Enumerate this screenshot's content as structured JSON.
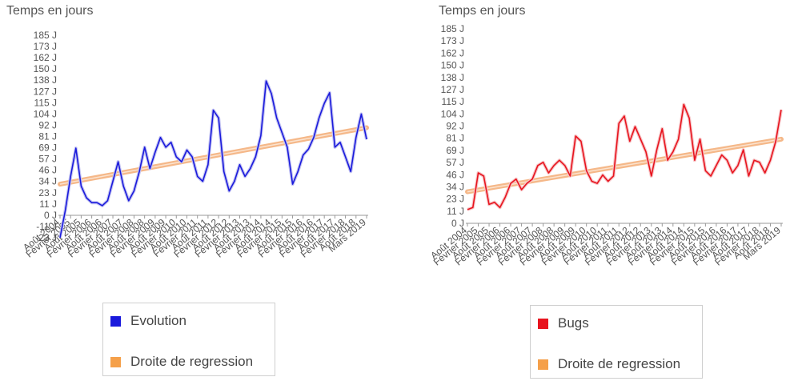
{
  "chart_data": [
    {
      "type": "line",
      "ylabel": "Temps en jours",
      "ytick_labels": [
        "185 J",
        "173 J",
        "162 J",
        "150 J",
        "138 J",
        "127 J",
        "115 J",
        "104 J",
        "92 J",
        "81 J",
        "69 J",
        "57 J",
        "46 J",
        "34 J",
        "23 J",
        "11 J",
        "0 J",
        "-11 J",
        "-23 J"
      ],
      "ylim": [
        -23,
        185
      ],
      "xtick_labels": [
        "Août 2004",
        "Février 2005",
        "Août 2005",
        "Février 2006",
        "Août 2006",
        "Février 2007",
        "Août 2007",
        "Février 2008",
        "Août 2008",
        "Février 2009",
        "Août 2009",
        "Février 2010",
        "Août 2010",
        "Février 2011",
        "Août 2011",
        "Février 2012",
        "Août 2012",
        "Février 2013",
        "Août 2013",
        "Février 2014",
        "Août 2014",
        "Février 2015",
        "Août 2015",
        "Février 2016",
        "Août 2016",
        "Février 2017",
        "Août 2017",
        "Février 2018",
        "Août 2018",
        "Mars 2019"
      ],
      "series": [
        {
          "name": "Evolution",
          "color": "#1a1adc",
          "x": [
            0,
            1,
            2,
            3,
            4,
            5,
            6,
            7,
            8,
            9,
            10,
            11,
            12,
            13,
            14,
            15,
            16,
            17,
            18,
            19,
            20,
            21,
            22,
            23,
            24,
            25,
            26,
            27,
            28,
            29,
            30,
            31,
            32,
            33,
            34,
            35,
            36,
            37,
            38,
            39,
            40,
            41,
            42,
            43,
            44,
            45,
            46,
            47,
            48,
            49,
            50,
            51,
            52,
            53,
            54,
            55,
            56,
            57,
            58
          ],
          "y": [
            -23,
            5,
            40,
            69,
            30,
            18,
            13,
            13,
            10,
            15,
            35,
            55,
            30,
            15,
            25,
            45,
            70,
            48,
            65,
            80,
            70,
            75,
            60,
            55,
            67,
            60,
            40,
            35,
            52,
            108,
            100,
            45,
            25,
            35,
            52,
            40,
            48,
            60,
            82,
            138,
            125,
            100,
            85,
            70,
            32,
            45,
            62,
            68,
            80,
            100,
            115,
            126,
            70,
            75,
            60,
            45,
            80,
            104,
            78
          ]
        },
        {
          "name": "Droite de regression",
          "color": "#f5b889",
          "x": [
            0,
            58
          ],
          "y": [
            32,
            90
          ]
        }
      ],
      "legend": {
        "position": "bottom",
        "entries": [
          "Evolution",
          "Droite de regression"
        ]
      },
      "grid": false
    },
    {
      "type": "line",
      "ylabel": "Temps en jours",
      "ytick_labels": [
        "185 J",
        "173 J",
        "162 J",
        "150 J",
        "138 J",
        "127 J",
        "115 J",
        "104 J",
        "92 J",
        "81 J",
        "69 J",
        "57 J",
        "46 J",
        "34 J",
        "23 J",
        "11 J",
        "0 J"
      ],
      "ylim": [
        0,
        185
      ],
      "xtick_labels": [
        "Août 2004",
        "Février 2005",
        "Août 2005",
        "Février 2006",
        "Août 2006",
        "Février 2007",
        "Août 2007",
        "Février 2008",
        "Août 2008",
        "Février 2009",
        "Août 2009",
        "Février 2010",
        "Août 2010",
        "Février 2011",
        "Août 2011",
        "Février 2012",
        "Août 2012",
        "Février 2013",
        "Août 2013",
        "Février 2014",
        "Août 2014",
        "Février 2015",
        "Août 2015",
        "Février 2016",
        "Août 2016",
        "Février 2017",
        "Août 2017",
        "Février 2018",
        "Août 2018",
        "Mars 2019"
      ],
      "series": [
        {
          "name": "Bugs",
          "color": "#e8141e",
          "x": [
            0,
            1,
            2,
            3,
            4,
            5,
            6,
            7,
            8,
            9,
            10,
            11,
            12,
            13,
            14,
            15,
            16,
            17,
            18,
            19,
            20,
            21,
            22,
            23,
            24,
            25,
            26,
            27,
            28,
            29,
            30,
            31,
            32,
            33,
            34,
            35,
            36,
            37,
            38,
            39,
            40,
            41,
            42,
            43,
            44,
            45,
            46,
            47,
            48,
            49,
            50,
            51,
            52,
            53,
            54,
            55,
            56,
            57,
            58
          ],
          "y": [
            13,
            15,
            48,
            45,
            18,
            20,
            15,
            25,
            38,
            42,
            32,
            38,
            42,
            55,
            58,
            48,
            55,
            60,
            55,
            45,
            83,
            78,
            50,
            40,
            38,
            46,
            40,
            45,
            95,
            102,
            78,
            92,
            80,
            68,
            45,
            70,
            90,
            60,
            68,
            80,
            113,
            100,
            60,
            80,
            50,
            45,
            55,
            65,
            60,
            48,
            55,
            70,
            45,
            60,
            58,
            48,
            60,
            78,
            108
          ]
        },
        {
          "name": "Droite de regression",
          "color": "#f5b889",
          "x": [
            0,
            58
          ],
          "y": [
            30,
            80
          ]
        }
      ],
      "legend": {
        "position": "bottom",
        "entries": [
          "Bugs",
          "Droite de regression"
        ]
      },
      "grid": false
    }
  ]
}
